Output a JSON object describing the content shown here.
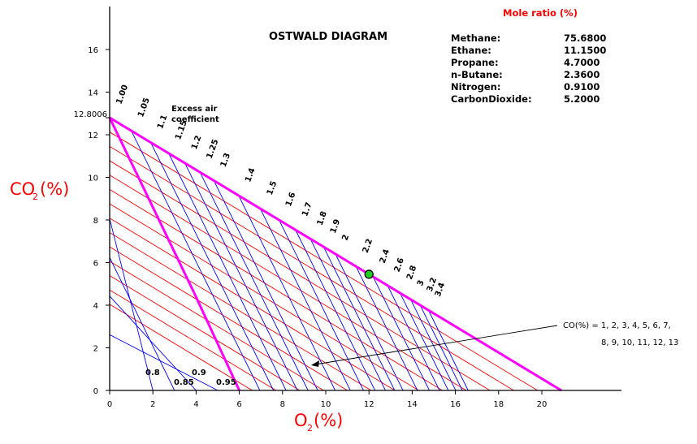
{
  "chart_data": {
    "type": "line",
    "title": "OSTWALD DIAGRAM",
    "xlabel": {
      "main": "O",
      "sub": "2",
      "unit": "(%)"
    },
    "ylabel": {
      "main": "CO",
      "sub": "2",
      "unit": "(%)"
    },
    "xlim": [
      0,
      23
    ],
    "ylim": [
      0,
      17.5
    ],
    "x_ticks": [
      0,
      2,
      4,
      6,
      8,
      10,
      12,
      14,
      16,
      18,
      20
    ],
    "y_ticks": [
      0,
      2,
      4,
      6,
      8,
      10,
      12,
      14,
      16
    ],
    "co2_max_label": "12.8006",
    "co2_max": 12.8006,
    "o2_max": 20.9,
    "co_factor": 1.1,
    "complete_combustion_line": {
      "from": [
        0,
        12.8006
      ],
      "to": [
        20.9,
        0
      ]
    },
    "incomplete_boundary_line": {
      "from": [
        0,
        12.8006
      ],
      "to": [
        6.0,
        0
      ]
    },
    "co_lines_label": [
      "CO(%) = 1, 2, 3, 4, 5, 6, 7,",
      "8, 9, 10, 11, 12, 13"
    ],
    "co_values": [
      1,
      2,
      3,
      4,
      5,
      6,
      7,
      8,
      9,
      10,
      11,
      12,
      13
    ],
    "excess_air_title": [
      "Excess air",
      "coefficient"
    ],
    "excess_air_upper": [
      {
        "label": "1.00",
        "o2": 0.0
      },
      {
        "label": "1.05",
        "o2": 1.0
      },
      {
        "label": "1.1",
        "o2": 1.9
      },
      {
        "label": "1.15",
        "o2": 2.73
      },
      {
        "label": "1.2",
        "o2": 3.48
      },
      {
        "label": "1.25",
        "o2": 4.18
      },
      {
        "label": "1.3",
        "o2": 4.82
      },
      {
        "label": "1.4",
        "o2": 5.97
      },
      {
        "label": "1.5",
        "o2": 6.97
      },
      {
        "label": "1.6",
        "o2": 7.84
      },
      {
        "label": "1.7",
        "o2": 8.6
      },
      {
        "label": "1.8",
        "o2": 9.29
      },
      {
        "label": "1.9",
        "o2": 9.9
      },
      {
        "label": "2",
        "o2": 10.45
      },
      {
        "label": "2.2",
        "o2": 11.4
      },
      {
        "label": "2.4",
        "o2": 12.19
      },
      {
        "label": "2.6",
        "o2": 12.86
      },
      {
        "label": "2.8",
        "o2": 13.44
      },
      {
        "label": "3",
        "o2": 13.93
      },
      {
        "label": "3.2",
        "o2": 14.37
      },
      {
        "label": "3.4",
        "o2": 14.75
      }
    ],
    "excess_air_lower": [
      {
        "label": "0.8",
        "o2": 2.0
      },
      {
        "label": "0.85",
        "o2": 3.0
      },
      {
        "label": "0.9",
        "o2": 4.0
      },
      {
        "label": "0.95",
        "o2": 5.0
      }
    ],
    "measured_point": {
      "x": 12.0,
      "y": 5.45,
      "color": "#22cc22"
    },
    "colors": {
      "magenta": "#ff00ff",
      "blue": "#0000ff",
      "red": "#ff0000",
      "axis": "#000000"
    }
  },
  "composition": {
    "title": "Mole ratio (%)",
    "rows": [
      {
        "name": "Methane:",
        "value": "75.6800"
      },
      {
        "name": "Ethane:",
        "value": "11.1500"
      },
      {
        "name": "Propane:",
        "value": "4.7000"
      },
      {
        "name": "n-Butane:",
        "value": "2.3600"
      },
      {
        "name": "Nitrogen:",
        "value": "0.9100"
      },
      {
        "name": "CarbonDioxide:",
        "value": "5.2000"
      }
    ]
  }
}
